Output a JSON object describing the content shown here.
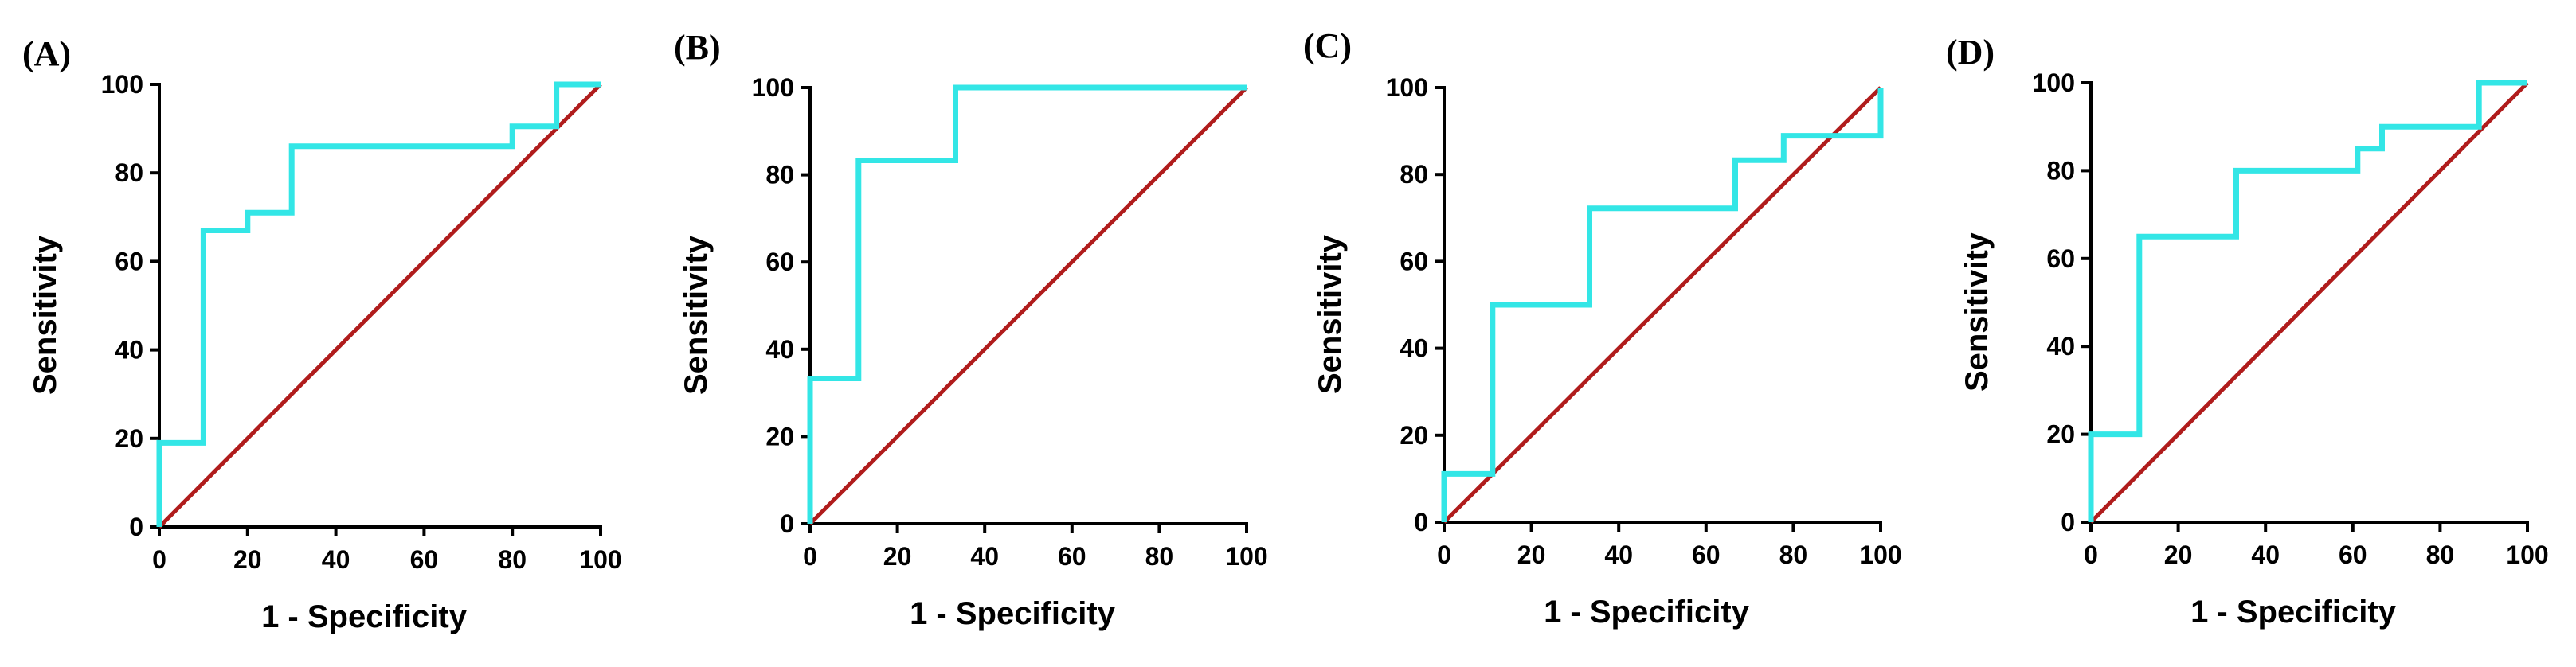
{
  "figure": {
    "colors": {
      "roc": "#33e6e6",
      "reference": "#b01c1c",
      "axis": "#000000",
      "background": "#ffffff"
    }
  },
  "chart_data": [
    {
      "type": "line",
      "panel": "(A)",
      "xlabel": "1 - Specificity",
      "ylabel": "Sensitivity",
      "xlim": [
        0,
        100
      ],
      "ylim": [
        0,
        100
      ],
      "xticks": [
        "0",
        "20",
        "40",
        "60",
        "80",
        "100"
      ],
      "yticks": [
        "0",
        "20",
        "40",
        "60",
        "80",
        "100"
      ],
      "series": [
        {
          "name": "ROC",
          "x": [
            0,
            0,
            10,
            10,
            20,
            20,
            30,
            30,
            80,
            80,
            90,
            90,
            100
          ],
          "y": [
            0,
            19,
            19,
            67,
            67,
            71,
            71,
            86,
            86,
            90.5,
            90.5,
            100,
            100
          ]
        },
        {
          "name": "Reference",
          "x": [
            0,
            100
          ],
          "y": [
            0,
            100
          ]
        }
      ]
    },
    {
      "type": "line",
      "panel": "(B)",
      "xlabel": "1 - Specificity",
      "ylabel": "Sensitivity",
      "xlim": [
        0,
        100
      ],
      "ylim": [
        0,
        100
      ],
      "xticks": [
        "0",
        "20",
        "40",
        "60",
        "80",
        "100"
      ],
      "yticks": [
        "0",
        "20",
        "40",
        "60",
        "80",
        "100"
      ],
      "series": [
        {
          "name": "ROC",
          "x": [
            0,
            0,
            11.1,
            11.1,
            33.3,
            33.3,
            100
          ],
          "y": [
            0,
            33.3,
            33.3,
            83.3,
            83.3,
            100,
            100
          ]
        },
        {
          "name": "Reference",
          "x": [
            0,
            100
          ],
          "y": [
            0,
            100
          ]
        }
      ]
    },
    {
      "type": "line",
      "panel": "(C)",
      "xlabel": "1 - Specificity",
      "ylabel": "Sensitivity",
      "xlim": [
        0,
        100
      ],
      "ylim": [
        0,
        100
      ],
      "xticks": [
        "0",
        "20",
        "40",
        "60",
        "80",
        "100"
      ],
      "yticks": [
        "0",
        "20",
        "40",
        "60",
        "80",
        "100"
      ],
      "series": [
        {
          "name": "ROC",
          "x": [
            0,
            0,
            11.1,
            11.1,
            33.3,
            33.3,
            66.7,
            66.7,
            77.8,
            77.8,
            100,
            100
          ],
          "y": [
            0,
            11.1,
            11.1,
            50,
            50,
            72.2,
            72.2,
            83.3,
            83.3,
            88.9,
            88.9,
            100
          ]
        },
        {
          "name": "Reference",
          "x": [
            0,
            100
          ],
          "y": [
            0,
            100
          ]
        }
      ]
    },
    {
      "type": "line",
      "panel": "(D)",
      "xlabel": "1 - Specificity",
      "ylabel": "Sensitivity",
      "xlim": [
        0,
        100
      ],
      "ylim": [
        0,
        100
      ],
      "xticks": [
        "0",
        "20",
        "40",
        "60",
        "80",
        "100"
      ],
      "yticks": [
        "0",
        "20",
        "40",
        "60",
        "80",
        "100"
      ],
      "series": [
        {
          "name": "ROC",
          "x": [
            0,
            0,
            11.1,
            11.1,
            33.3,
            33.3,
            61.1,
            61.1,
            66.7,
            66.7,
            88.9,
            88.9,
            100
          ],
          "y": [
            0,
            20,
            20,
            65,
            65,
            80,
            80,
            85,
            85,
            90,
            90,
            100,
            100
          ]
        },
        {
          "name": "Reference",
          "x": [
            0,
            100
          ],
          "y": [
            0,
            100
          ]
        }
      ]
    }
  ]
}
